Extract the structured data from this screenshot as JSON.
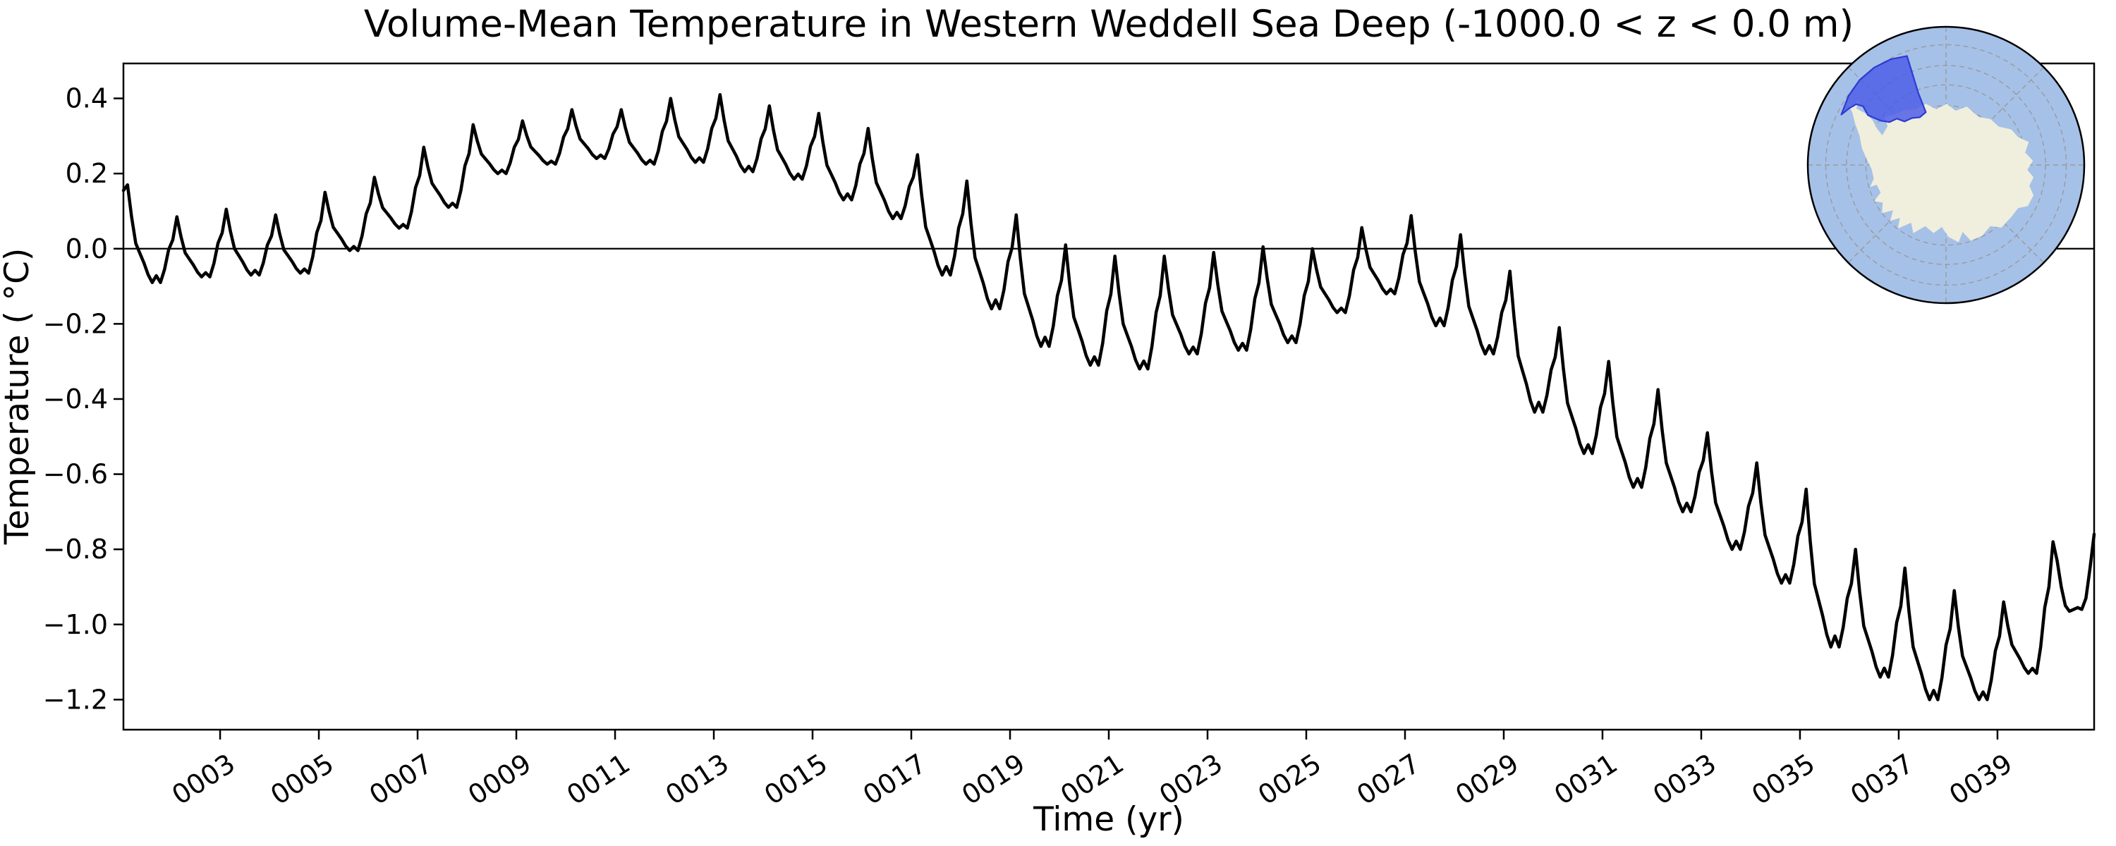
{
  "title": "Volume-Mean Temperature in Western Weddell Sea Deep (-1000.0 < z < 0.0 m)",
  "xlabel": "Time (yr)",
  "ylabel": "Temperature ( °C)",
  "chart_data": {
    "type": "line",
    "series_name": "volume-mean temperature",
    "line_color": "#000000",
    "line_width": 4.5,
    "grid": false,
    "zero_reference_line": 0.0,
    "xlim": [
      1.042,
      40.958
    ],
    "ylim": [
      -1.28,
      0.493
    ],
    "x_tick_rotation_deg": -33,
    "x_ticks": [
      {
        "label": "0003",
        "year": 3
      },
      {
        "label": "0005",
        "year": 5
      },
      {
        "label": "0007",
        "year": 7
      },
      {
        "label": "0009",
        "year": 9
      },
      {
        "label": "0011",
        "year": 11
      },
      {
        "label": "0013",
        "year": 13
      },
      {
        "label": "0015",
        "year": 15
      },
      {
        "label": "0017",
        "year": 17
      },
      {
        "label": "0019",
        "year": 19
      },
      {
        "label": "0021",
        "year": 21
      },
      {
        "label": "0023",
        "year": 23
      },
      {
        "label": "0025",
        "year": 25
      },
      {
        "label": "0027",
        "year": 27
      },
      {
        "label": "0029",
        "year": 29
      },
      {
        "label": "0031",
        "year": 31
      },
      {
        "label": "0033",
        "year": 33
      },
      {
        "label": "0035",
        "year": 35
      },
      {
        "label": "0037",
        "year": 37
      },
      {
        "label": "0039",
        "year": 39
      }
    ],
    "y_ticks": [
      {
        "label": "0.4",
        "value": 0.4
      },
      {
        "label": "0.2",
        "value": 0.2
      },
      {
        "label": "0.0",
        "value": 0.0
      },
      {
        "label": "−0.2",
        "value": -0.2
      },
      {
        "label": "−0.4",
        "value": -0.4
      },
      {
        "label": "−0.6",
        "value": -0.6
      },
      {
        "label": "−0.8",
        "value": -0.8
      },
      {
        "label": "−1.0",
        "value": -1.0
      },
      {
        "label": "−1.2",
        "value": -1.2
      }
    ],
    "time_coverage": "monthly means, model years 0001-0040",
    "annual_feb_peaks": [
      0.17,
      0.085,
      0.105,
      0.09,
      0.15,
      0.19,
      0.27,
      0.33,
      0.34,
      0.37,
      0.37,
      0.4,
      0.41,
      0.38,
      0.36,
      0.32,
      0.25,
      0.18,
      0.09,
      0.01,
      -0.02,
      -0.02,
      -0.01,
      0.005,
      0.0,
      0.056,
      0.088,
      0.037,
      -0.06,
      -0.21,
      -0.3,
      -0.375,
      -0.49,
      -0.57,
      -0.64,
      -0.8,
      -0.85,
      -0.91,
      -0.94,
      -0.78
    ],
    "annual_troughs": [
      -0.09,
      -0.075,
      -0.07,
      -0.065,
      -0.005,
      0.055,
      0.11,
      0.2,
      0.225,
      0.24,
      0.225,
      0.23,
      0.205,
      0.185,
      0.13,
      0.08,
      -0.07,
      -0.16,
      -0.26,
      -0.31,
      -0.32,
      -0.28,
      -0.27,
      -0.25,
      -0.17,
      -0.12,
      -0.205,
      -0.28,
      -0.435,
      -0.545,
      -0.635,
      -0.7,
      -0.8,
      -0.89,
      -1.06,
      -1.14,
      -1.2,
      -1.2,
      -1.13,
      -0.96
    ],
    "year1_prev_trough": 0.127,
    "final_year_monthly": [
      -0.9,
      -0.78,
      -0.83,
      -0.9,
      -0.95,
      -0.965,
      -0.96,
      -0.955,
      -0.96,
      -0.93,
      -0.85,
      -0.76
    ],
    "seasonal_cycle_fractions": {
      "jan_rise_from_prev_trough": 0.35,
      "feb_to_oct_decay_of_peak_trough_range": [
        0.0,
        0.33,
        0.6,
        0.7,
        0.8,
        0.92,
        1.0,
        0.93,
        1.0
      ],
      "nov_recovery_toward_next_peak": 0.2,
      "dec_recovery_toward_next_peak": 0.5
    },
    "extremes": {
      "max": 0.41,
      "max_year": 13.2,
      "min": -1.2,
      "min_years": [
        37.7,
        38.7
      ],
      "end_value": -0.76
    }
  },
  "inset_map": {
    "description": "south-polar view with highlighted region",
    "ocean_color": "#a6c1e8",
    "land_color": "#f0eedd",
    "region_fill": "#4a5ae6",
    "region_edge": "#2d3bd4",
    "graticule_color": "#9a9a9a",
    "rim_color": "#000000"
  }
}
